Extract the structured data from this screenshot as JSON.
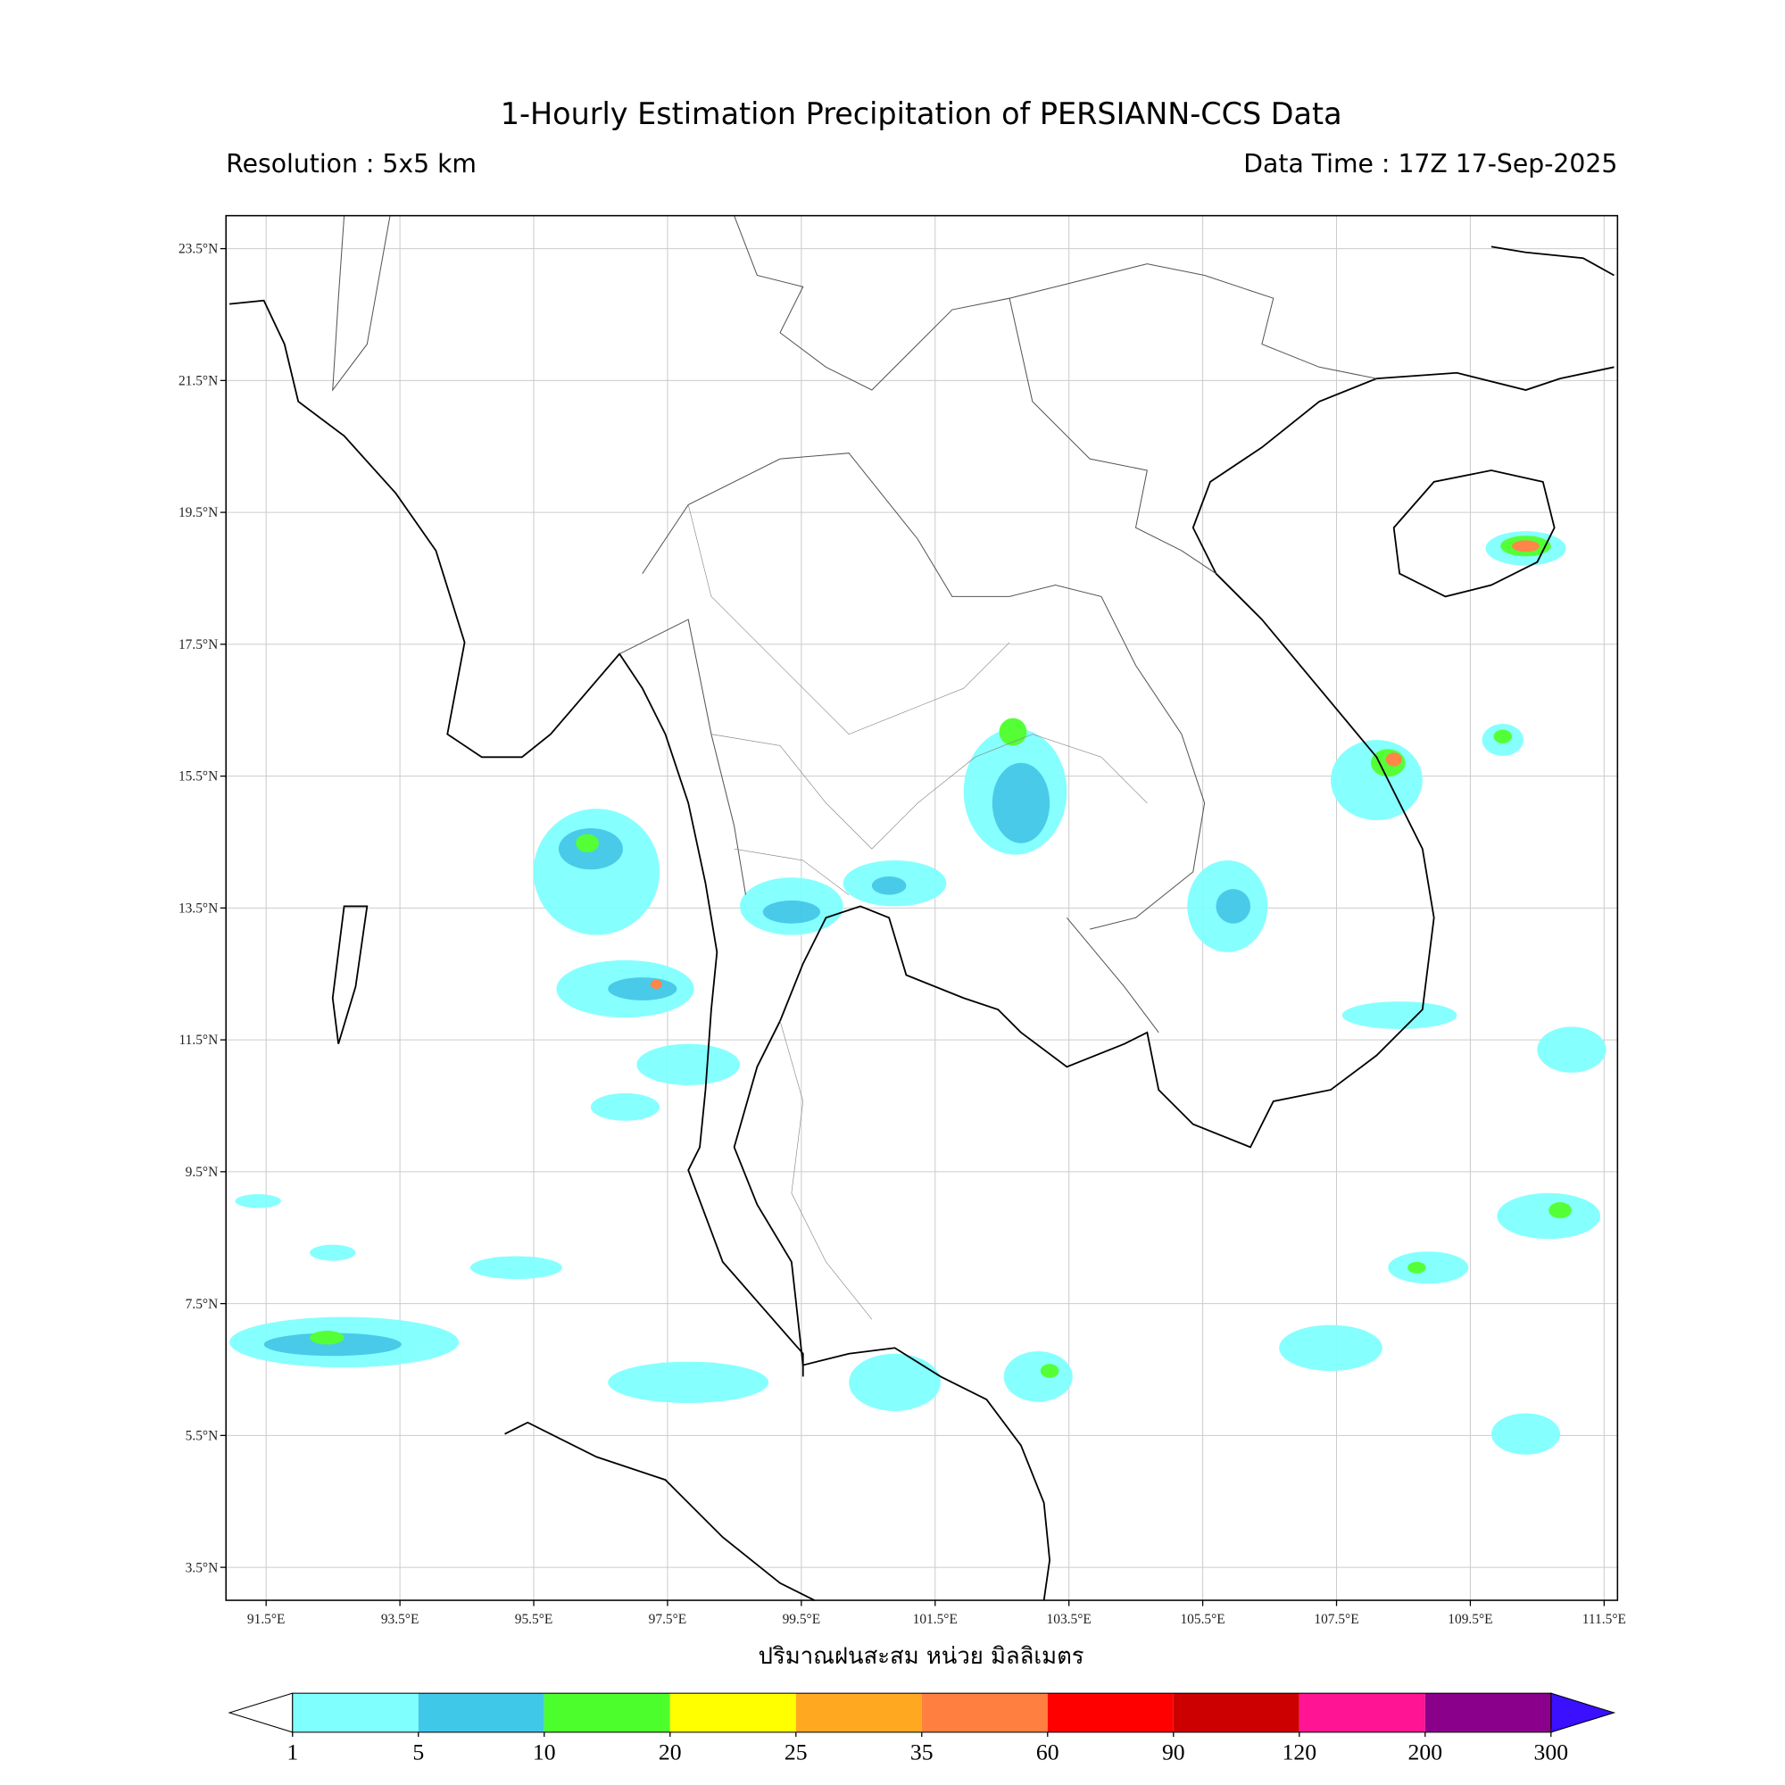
{
  "header": {
    "title": "1-Hourly Estimation Precipitation of PERSIANN-CCS Data",
    "resolution": "Resolution : 5x5 km",
    "data_time": "Data Time : 17Z 17-Sep-2025"
  },
  "map": {
    "xlim": [
      90.9,
      111.7
    ],
    "ylim": [
      3.0,
      24.0
    ],
    "xticks": [
      {
        "value": 91.5,
        "label": "91.5°E"
      },
      {
        "value": 93.5,
        "label": "93.5°E"
      },
      {
        "value": 95.5,
        "label": "95.5°E"
      },
      {
        "value": 97.5,
        "label": "97.5°E"
      },
      {
        "value": 99.5,
        "label": "99.5°E"
      },
      {
        "value": 101.5,
        "label": "101.5°E"
      },
      {
        "value": 103.5,
        "label": "103.5°E"
      },
      {
        "value": 105.5,
        "label": "105.5°E"
      },
      {
        "value": 107.5,
        "label": "107.5°E"
      },
      {
        "value": 109.5,
        "label": "109.5°E"
      },
      {
        "value": 111.5,
        "label": "111.5°E"
      }
    ],
    "yticks": [
      {
        "value": 3.5,
        "label": "3.5°N"
      },
      {
        "value": 5.5,
        "label": "5.5°N"
      },
      {
        "value": 7.5,
        "label": "7.5°N"
      },
      {
        "value": 9.5,
        "label": "9.5°N"
      },
      {
        "value": 11.5,
        "label": "11.5°N"
      },
      {
        "value": 13.5,
        "label": "13.5°N"
      },
      {
        "value": 15.5,
        "label": "15.5°N"
      },
      {
        "value": 17.5,
        "label": "17.5°N"
      },
      {
        "value": 19.5,
        "label": "19.5°N"
      },
      {
        "value": 21.5,
        "label": "21.5°N"
      },
      {
        "value": 23.5,
        "label": "23.5°N"
      }
    ],
    "grid": true,
    "xlabel": "ปริมาณฝนสะสม หน่วย มิลลิเมตร"
  },
  "colorbar": {
    "levels": [
      1,
      5,
      10,
      20,
      25,
      35,
      60,
      90,
      120,
      200,
      300
    ],
    "colors": [
      "#80ffff",
      "#40c8e8",
      "#4cff2c",
      "#ffff00",
      "#ffa820",
      "#ff7f40",
      "#ff0000",
      "#cc0000",
      "#ff1493",
      "#8b008b"
    ],
    "under_color": "#ffffff",
    "over_color": "#3a10ff"
  }
}
